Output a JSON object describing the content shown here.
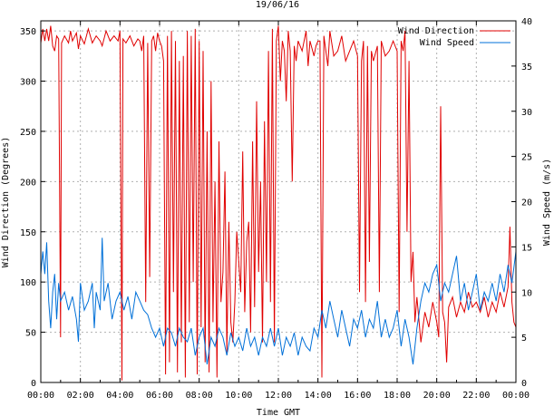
{
  "colors": {
    "direction": "#e00000",
    "speed": "#0070d8",
    "grid": "#b0b0b0",
    "axis": "#000000",
    "background": "#ffffff"
  },
  "chart_data": {
    "type": "line",
    "title": "19/06/16",
    "xlabel": "Time GMT",
    "ylabel_left": "Wind Direction (Degrees)",
    "ylabel_right": "Wind Speed (m/s)",
    "xlim": [
      0,
      24
    ],
    "x_unit": "hours GMT",
    "y_left_lim": [
      0,
      360
    ],
    "y_right_lim": [
      0,
      40
    ],
    "x_ticks": [
      "00:00",
      "02:00",
      "04:00",
      "06:00",
      "08:00",
      "10:00",
      "12:00",
      "14:00",
      "16:00",
      "18:00",
      "20:00",
      "22:00",
      "00:00"
    ],
    "y_left_ticks": [
      "0",
      "50",
      "100",
      "150",
      "200",
      "250",
      "300",
      "350"
    ],
    "y_right_ticks": [
      "0",
      "5",
      "10",
      "15",
      "20",
      "25",
      "30",
      "35",
      "40"
    ],
    "grid": true,
    "legend_position": "top-right",
    "series": [
      {
        "name": "Wind Direction",
        "axis": "left",
        "color": "#e00000",
        "points": [
          [
            0.0,
            338
          ],
          [
            0.1,
            352
          ],
          [
            0.2,
            340
          ],
          [
            0.3,
            352
          ],
          [
            0.4,
            340
          ],
          [
            0.5,
            355
          ],
          [
            0.6,
            335
          ],
          [
            0.7,
            330
          ],
          [
            0.8,
            345
          ],
          [
            0.9,
            342
          ],
          [
            1.0,
            45
          ],
          [
            1.05,
            338
          ],
          [
            1.2,
            345
          ],
          [
            1.4,
            338
          ],
          [
            1.5,
            350
          ],
          [
            1.6,
            340
          ],
          [
            1.8,
            348
          ],
          [
            1.9,
            332
          ],
          [
            2.0,
            345
          ],
          [
            2.2,
            337
          ],
          [
            2.4,
            352
          ],
          [
            2.6,
            338
          ],
          [
            2.8,
            345
          ],
          [
            3.0,
            340
          ],
          [
            3.1,
            335
          ],
          [
            3.3,
            350
          ],
          [
            3.5,
            340
          ],
          [
            3.7,
            345
          ],
          [
            3.9,
            340
          ],
          [
            4.0,
            350
          ],
          [
            4.1,
            2
          ],
          [
            4.15,
            342
          ],
          [
            4.3,
            338
          ],
          [
            4.5,
            345
          ],
          [
            4.7,
            335
          ],
          [
            4.9,
            342
          ],
          [
            5.0,
            340
          ],
          [
            5.1,
            330
          ],
          [
            5.2,
            345
          ],
          [
            5.3,
            80
          ],
          [
            5.4,
            338
          ],
          [
            5.5,
            105
          ],
          [
            5.6,
            340
          ],
          [
            5.7,
            345
          ],
          [
            5.8,
            330
          ],
          [
            5.9,
            348
          ],
          [
            6.0,
            340
          ],
          [
            6.1,
            335
          ],
          [
            6.2,
            320
          ],
          [
            6.3,
            8
          ],
          [
            6.4,
            345
          ],
          [
            6.5,
            20
          ],
          [
            6.6,
            350
          ],
          [
            6.7,
            90
          ],
          [
            6.8,
            340
          ],
          [
            6.9,
            10
          ],
          [
            7.0,
            320
          ],
          [
            7.1,
            40
          ],
          [
            7.2,
            325
          ],
          [
            7.3,
            5
          ],
          [
            7.4,
            350
          ],
          [
            7.5,
            60
          ],
          [
            7.6,
            345
          ],
          [
            7.7,
            100
          ],
          [
            7.8,
            352
          ],
          [
            7.9,
            8
          ],
          [
            8.0,
            340
          ],
          [
            8.1,
            55
          ],
          [
            8.2,
            330
          ],
          [
            8.3,
            20
          ],
          [
            8.4,
            250
          ],
          [
            8.5,
            10
          ],
          [
            8.6,
            300
          ],
          [
            8.7,
            60
          ],
          [
            8.8,
            200
          ],
          [
            8.9,
            5
          ],
          [
            9.0,
            240
          ],
          [
            9.1,
            80
          ],
          [
            9.2,
            110
          ],
          [
            9.3,
            210
          ],
          [
            9.4,
            30
          ],
          [
            9.5,
            160
          ],
          [
            9.6,
            60
          ],
          [
            9.7,
            40
          ],
          [
            9.8,
            80
          ],
          [
            9.9,
            150
          ],
          [
            10.0,
            120
          ],
          [
            10.1,
            90
          ],
          [
            10.2,
            230
          ],
          [
            10.3,
            70
          ],
          [
            10.4,
            140
          ],
          [
            10.5,
            160
          ],
          [
            10.6,
            50
          ],
          [
            10.7,
            240
          ],
          [
            10.8,
            75
          ],
          [
            10.9,
            280
          ],
          [
            11.0,
            110
          ],
          [
            11.1,
            200
          ],
          [
            11.2,
            40
          ],
          [
            11.3,
            260
          ],
          [
            11.4,
            100
          ],
          [
            11.5,
            330
          ],
          [
            11.6,
            80
          ],
          [
            11.7,
            352
          ],
          [
            11.8,
            40
          ],
          [
            11.9,
            340
          ],
          [
            12.0,
            355
          ],
          [
            12.1,
            300
          ],
          [
            12.2,
            340
          ],
          [
            12.3,
            330
          ],
          [
            12.4,
            280
          ],
          [
            12.5,
            350
          ],
          [
            12.6,
            330
          ],
          [
            12.7,
            200
          ],
          [
            12.8,
            335
          ],
          [
            12.9,
            320
          ],
          [
            13.0,
            340
          ],
          [
            13.2,
            330
          ],
          [
            13.4,
            350
          ],
          [
            13.5,
            315
          ],
          [
            13.6,
            340
          ],
          [
            13.8,
            325
          ],
          [
            13.9,
            335
          ],
          [
            14.0,
            340
          ],
          [
            14.1,
            340
          ],
          [
            14.2,
            5
          ],
          [
            14.3,
            345
          ],
          [
            14.4,
            330
          ],
          [
            14.5,
            315
          ],
          [
            14.6,
            350
          ],
          [
            14.8,
            325
          ],
          [
            15.0,
            330
          ],
          [
            15.2,
            345
          ],
          [
            15.4,
            320
          ],
          [
            15.6,
            330
          ],
          [
            15.8,
            340
          ],
          [
            16.0,
            325
          ],
          [
            16.1,
            90
          ],
          [
            16.2,
            320
          ],
          [
            16.3,
            340
          ],
          [
            16.4,
            80
          ],
          [
            16.5,
            335
          ],
          [
            16.6,
            120
          ],
          [
            16.7,
            330
          ],
          [
            16.8,
            320
          ],
          [
            17.0,
            335
          ],
          [
            17.1,
            90
          ],
          [
            17.2,
            340
          ],
          [
            17.4,
            325
          ],
          [
            17.6,
            330
          ],
          [
            17.8,
            340
          ],
          [
            18.0,
            330
          ],
          [
            18.1,
            70
          ],
          [
            18.2,
            340
          ],
          [
            18.3,
            330
          ],
          [
            18.4,
            350
          ],
          [
            18.5,
            150
          ],
          [
            18.6,
            320
          ],
          [
            18.7,
            100
          ],
          [
            18.8,
            130
          ],
          [
            18.9,
            60
          ],
          [
            19.0,
            85
          ],
          [
            19.2,
            40
          ],
          [
            19.4,
            70
          ],
          [
            19.6,
            55
          ],
          [
            19.8,
            80
          ],
          [
            20.0,
            60
          ],
          [
            20.1,
            45
          ],
          [
            20.2,
            275
          ],
          [
            20.3,
            70
          ],
          [
            20.4,
            60
          ],
          [
            20.5,
            20
          ],
          [
            20.6,
            75
          ],
          [
            20.8,
            85
          ],
          [
            21.0,
            65
          ],
          [
            21.2,
            80
          ],
          [
            21.4,
            70
          ],
          [
            21.6,
            90
          ],
          [
            21.8,
            75
          ],
          [
            22.0,
            80
          ],
          [
            22.2,
            70
          ],
          [
            22.4,
            85
          ],
          [
            22.6,
            65
          ],
          [
            22.8,
            80
          ],
          [
            23.0,
            70
          ],
          [
            23.2,
            90
          ],
          [
            23.4,
            75
          ],
          [
            23.6,
            95
          ],
          [
            23.7,
            155
          ],
          [
            23.8,
            80
          ],
          [
            23.9,
            60
          ],
          [
            24.0,
            55
          ]
        ]
      },
      {
        "name": "Wind Speed",
        "axis": "right",
        "color": "#0070d8",
        "points": [
          [
            0.0,
            12
          ],
          [
            0.1,
            14.5
          ],
          [
            0.2,
            12
          ],
          [
            0.3,
            15.5
          ],
          [
            0.4,
            9
          ],
          [
            0.5,
            6
          ],
          [
            0.6,
            10
          ],
          [
            0.7,
            12
          ],
          [
            0.8,
            7
          ],
          [
            0.9,
            11
          ],
          [
            1.0,
            9
          ],
          [
            1.2,
            10
          ],
          [
            1.4,
            8
          ],
          [
            1.6,
            9.5
          ],
          [
            1.8,
            7
          ],
          [
            1.9,
            4.5
          ],
          [
            2.0,
            11
          ],
          [
            2.2,
            8
          ],
          [
            2.4,
            9
          ],
          [
            2.6,
            11
          ],
          [
            2.7,
            6
          ],
          [
            2.8,
            10
          ],
          [
            3.0,
            8
          ],
          [
            3.1,
            16
          ],
          [
            3.2,
            9
          ],
          [
            3.4,
            11
          ],
          [
            3.6,
            7
          ],
          [
            3.8,
            9
          ],
          [
            4.0,
            10
          ],
          [
            4.2,
            8
          ],
          [
            4.4,
            9.5
          ],
          [
            4.6,
            7
          ],
          [
            4.8,
            10
          ],
          [
            5.0,
            9
          ],
          [
            5.2,
            8
          ],
          [
            5.4,
            7.5
          ],
          [
            5.6,
            6
          ],
          [
            5.8,
            5
          ],
          [
            6.0,
            6
          ],
          [
            6.2,
            4
          ],
          [
            6.4,
            6
          ],
          [
            6.6,
            5.5
          ],
          [
            6.8,
            4
          ],
          [
            7.0,
            6
          ],
          [
            7.2,
            5
          ],
          [
            7.4,
            4.5
          ],
          [
            7.6,
            6
          ],
          [
            7.8,
            3
          ],
          [
            8.0,
            5
          ],
          [
            8.2,
            6
          ],
          [
            8.4,
            2
          ],
          [
            8.6,
            5
          ],
          [
            8.8,
            4
          ],
          [
            9.0,
            6
          ],
          [
            9.2,
            5
          ],
          [
            9.4,
            3
          ],
          [
            9.6,
            5.5
          ],
          [
            9.8,
            4
          ],
          [
            10.0,
            5
          ],
          [
            10.2,
            3.5
          ],
          [
            10.4,
            6
          ],
          [
            10.6,
            4
          ],
          [
            10.8,
            5
          ],
          [
            11.0,
            3
          ],
          [
            11.2,
            5
          ],
          [
            11.4,
            4
          ],
          [
            11.6,
            6
          ],
          [
            11.8,
            4
          ],
          [
            12.0,
            6
          ],
          [
            12.2,
            3
          ],
          [
            12.4,
            5
          ],
          [
            12.6,
            4
          ],
          [
            12.8,
            5.5
          ],
          [
            13.0,
            3
          ],
          [
            13.2,
            5
          ],
          [
            13.4,
            4
          ],
          [
            13.6,
            3.5
          ],
          [
            13.8,
            6
          ],
          [
            14.0,
            5
          ],
          [
            14.2,
            8
          ],
          [
            14.4,
            6
          ],
          [
            14.6,
            9
          ],
          [
            14.8,
            7
          ],
          [
            15.0,
            5
          ],
          [
            15.2,
            8
          ],
          [
            15.4,
            6
          ],
          [
            15.6,
            4
          ],
          [
            15.8,
            7
          ],
          [
            16.0,
            6
          ],
          [
            16.2,
            8
          ],
          [
            16.4,
            5
          ],
          [
            16.6,
            7
          ],
          [
            16.8,
            6
          ],
          [
            17.0,
            9
          ],
          [
            17.2,
            5
          ],
          [
            17.4,
            7
          ],
          [
            17.6,
            5
          ],
          [
            17.8,
            6
          ],
          [
            18.0,
            8
          ],
          [
            18.2,
            4
          ],
          [
            18.4,
            7
          ],
          [
            18.6,
            5
          ],
          [
            18.8,
            2
          ],
          [
            19.0,
            6
          ],
          [
            19.2,
            9
          ],
          [
            19.4,
            11
          ],
          [
            19.6,
            10
          ],
          [
            19.8,
            12
          ],
          [
            20.0,
            13
          ],
          [
            20.2,
            9
          ],
          [
            20.4,
            11
          ],
          [
            20.6,
            10
          ],
          [
            20.8,
            12
          ],
          [
            21.0,
            14
          ],
          [
            21.2,
            9
          ],
          [
            21.4,
            11
          ],
          [
            21.6,
            8
          ],
          [
            21.8,
            10
          ],
          [
            22.0,
            12
          ],
          [
            22.2,
            8
          ],
          [
            22.4,
            10
          ],
          [
            22.6,
            9
          ],
          [
            22.8,
            11
          ],
          [
            23.0,
            9
          ],
          [
            23.2,
            12
          ],
          [
            23.4,
            10
          ],
          [
            23.6,
            13
          ],
          [
            23.8,
            11
          ],
          [
            24.0,
            14.5
          ]
        ]
      }
    ]
  }
}
